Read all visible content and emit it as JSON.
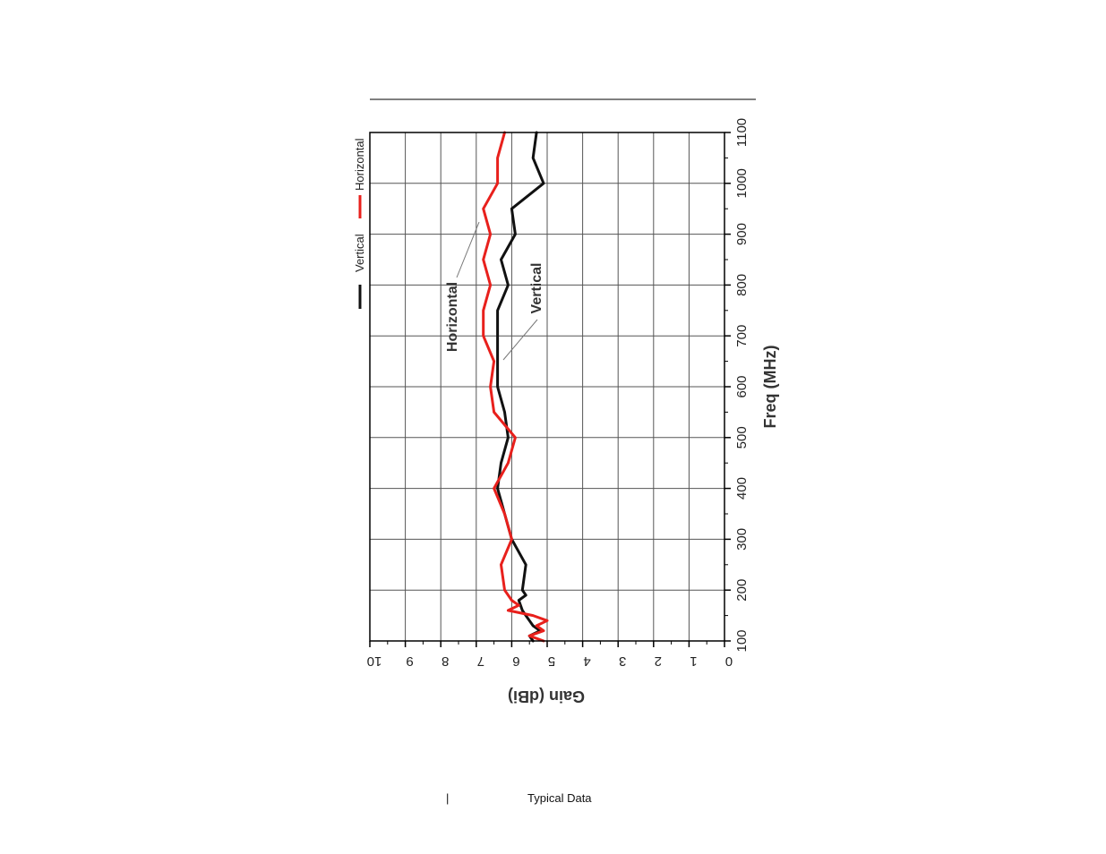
{
  "footer": {
    "separator": "|",
    "caption": "Typical Data"
  },
  "colors": {
    "vertical": "#111111",
    "horizontal": "#e8201c",
    "grid": "#555555",
    "axis": "#000000"
  },
  "chart_data": {
    "type": "line",
    "xlabel": "Freq (MHz)",
    "ylabel": "Gain (dBi)",
    "xlim": [
      100,
      1100
    ],
    "ylim": [
      0,
      10
    ],
    "x_ticks": [
      "100",
      "200",
      "300",
      "400",
      "500",
      "600",
      "700",
      "800",
      "900",
      "1000",
      "1100"
    ],
    "y_ticks": [
      "0",
      "1",
      "2",
      "3",
      "4",
      "5",
      "6",
      "7",
      "8",
      "9",
      "10"
    ],
    "grid": true,
    "orientation": "rotated 90 degrees clockwise",
    "legend": {
      "position": "top-left",
      "entries": [
        "Vertical",
        "Horizontal"
      ]
    },
    "annotations": [
      {
        "text": "Horizontal",
        "series": "Horizontal"
      },
      {
        "text": "Vertical",
        "series": "Vertical"
      }
    ],
    "series": [
      {
        "name": "Vertical",
        "color": "#111111",
        "x": [
          100,
          110,
          120,
          130,
          140,
          150,
          160,
          180,
          190,
          200,
          250,
          300,
          350,
          400,
          450,
          500,
          550,
          600,
          650,
          700,
          750,
          800,
          850,
          900,
          950,
          1000,
          1050,
          1100
        ],
        "y": [
          5.4,
          5.5,
          5.2,
          5.4,
          5.5,
          5.6,
          5.7,
          5.8,
          5.6,
          5.7,
          5.6,
          6.0,
          6.2,
          6.4,
          6.3,
          6.1,
          6.2,
          6.4,
          6.4,
          6.4,
          6.4,
          6.1,
          6.3,
          5.9,
          6.0,
          5.1,
          5.4,
          5.3
        ]
      },
      {
        "name": "Horizontal",
        "color": "#e8201c",
        "x": [
          100,
          110,
          120,
          130,
          140,
          150,
          160,
          170,
          180,
          200,
          250,
          300,
          350,
          400,
          450,
          500,
          550,
          600,
          650,
          700,
          750,
          800,
          850,
          900,
          950,
          1000,
          1050,
          1100
        ],
        "y": [
          5.1,
          5.5,
          5.1,
          5.3,
          5.0,
          5.4,
          6.1,
          5.8,
          6.0,
          6.2,
          6.3,
          6.0,
          6.2,
          6.5,
          6.1,
          5.9,
          6.5,
          6.6,
          6.5,
          6.8,
          6.8,
          6.6,
          6.8,
          6.6,
          6.8,
          6.4,
          6.4,
          6.2
        ]
      }
    ]
  }
}
